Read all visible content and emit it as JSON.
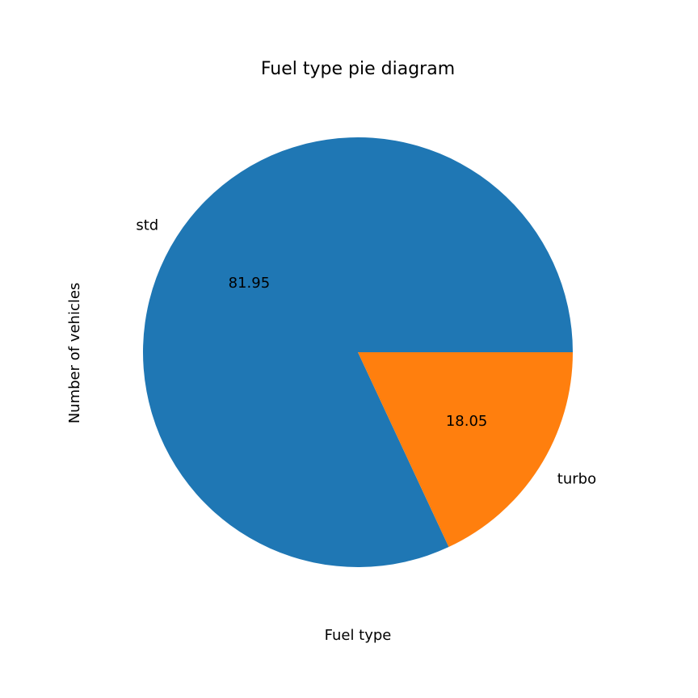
{
  "chart_data": {
    "type": "pie",
    "title": "Fuel type pie diagram",
    "xlabel": "Fuel type",
    "ylabel": "Number of vehicles",
    "categories": [
      "std",
      "turbo"
    ],
    "values": [
      81.95,
      18.05
    ],
    "percent_labels": [
      "81.95",
      "18.05"
    ],
    "colors": [
      "#1f77b4",
      "#ff7f0e"
    ],
    "start_angle_deg": 0,
    "direction": "counterclockwise",
    "legend": "none"
  }
}
